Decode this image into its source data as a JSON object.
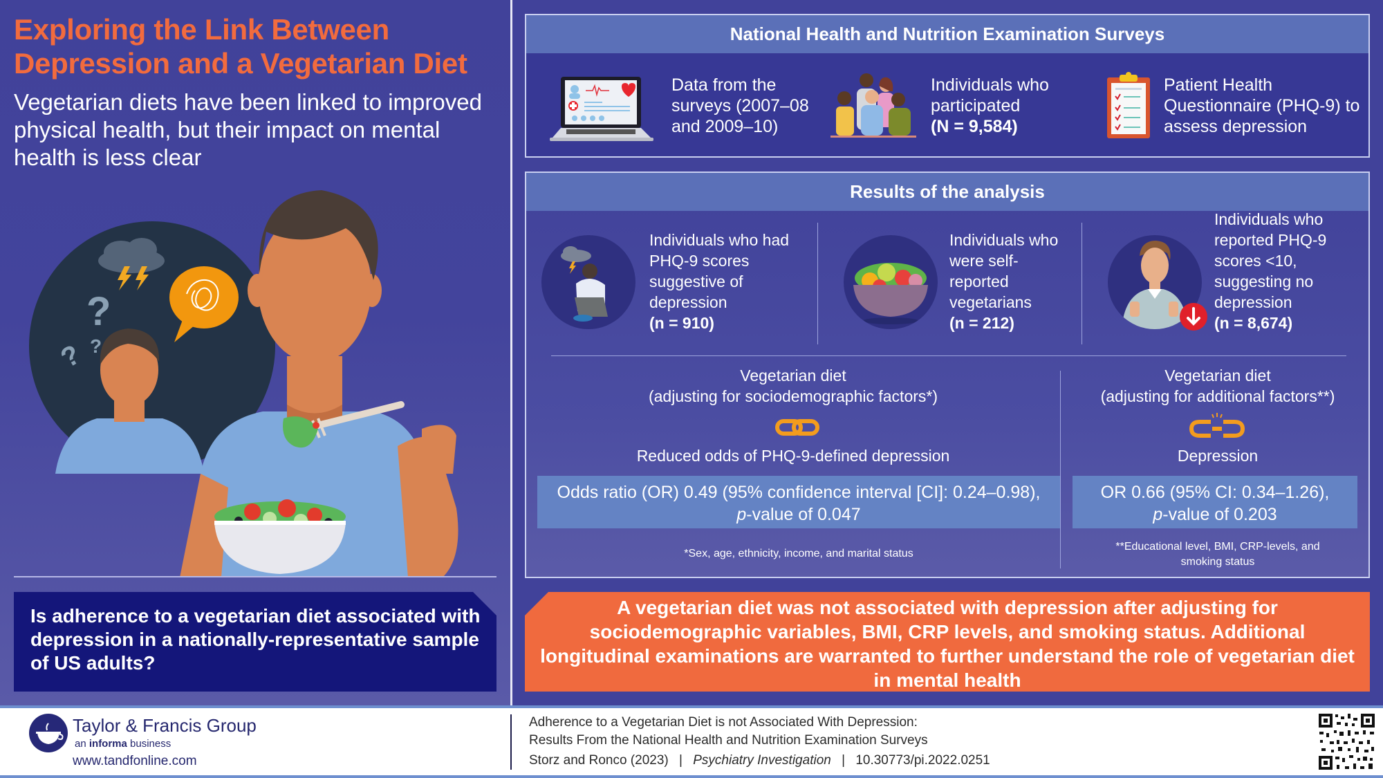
{
  "header": {
    "title": "Exploring the Link Between Depression and a Vegetarian Diet",
    "subtitle": "Vegetarian diets have been linked to improved physical health, but their impact on mental health is less clear"
  },
  "question": "Is adherence to a vegetarian diet associated with depression in a nationally-representative sample of US adults?",
  "surveys": {
    "title": "National Health and Nutrition Examination Surveys",
    "items": [
      {
        "icon": "laptop-health-record-icon",
        "text": "Data from the surveys (2007–08 and 2009–10)"
      },
      {
        "icon": "group-of-people-icon",
        "text": "Individuals who participated",
        "bold": "(N = 9,584)"
      },
      {
        "icon": "clipboard-checklist-icon",
        "text": "Patient Health Questionnaire (PHQ-9) to assess depression"
      }
    ]
  },
  "results": {
    "title": "Results of the analysis",
    "stats": [
      {
        "icon": "depressed-person-icon",
        "text": "Individuals who had PHQ-9 scores suggestive of depression",
        "bold": "(n = 910)"
      },
      {
        "icon": "salad-bowl-icon",
        "text": "Individuals who were self-reported vegetarians",
        "bold": "(n = 212)"
      },
      {
        "icon": "thumbs-up-person-icon",
        "text": "Individuals who reported PHQ-9 scores <10, suggesting no depression",
        "bold": "(n = 8,674)"
      }
    ],
    "analyses": [
      {
        "heading": "Vegetarian diet",
        "adjust": "(adjusting for sociodemographic factors*)",
        "icon": "linked-chain-icon",
        "outcome": "Reduced odds of PHQ-9-defined depression",
        "or_line": "Odds ratio (OR) 0.49 (95% confidence interval [CI]: 0.24–0.98),",
        "p_prefix": "p",
        "p_rest": "-value of 0.047",
        "footnote": "*Sex, age, ethnicity, income, and marital status"
      },
      {
        "heading": "Vegetarian diet",
        "adjust": "(adjusting for additional factors**)",
        "icon": "broken-chain-icon",
        "outcome": "Depression",
        "or_line": "OR 0.66 (95% CI: 0.34–1.26),",
        "p_prefix": "p",
        "p_rest": "-value of 0.203",
        "footnote": "**Educational level, BMI, CRP-levels, and smoking status"
      }
    ]
  },
  "conclusion": "A vegetarian diet was not associated with depression after adjusting for sociodemographic variables, BMI, CRP levels, and smoking status. Additional longitudinal examinations are warranted to further understand the role of vegetarian diet in mental health",
  "footer": {
    "brand": "Taylor & Francis Group",
    "tagline_prefix": "an ",
    "tagline_bold": "informa",
    "tagline_suffix": " business",
    "url": "www.tandfonline.com",
    "citation_line1": "Adherence to a Vegetarian Diet is not Associated With Depression:",
    "citation_line2": "Results From the National Health and Nutrition Examination Surveys",
    "authors": "Storz and Ronco (2023)",
    "separator": "|",
    "journal": "Psychiatry Investigation",
    "doi": "10.30773/pi.2022.0251"
  },
  "colors": {
    "background": "#41429a",
    "title_orange": "#f26b3e",
    "panel_header": "#5b70b8",
    "question_navy": "#14167a",
    "conclusion_orange": "#f06a3e",
    "or_box": "#6483c4",
    "chain_orange": "#f39c1e"
  }
}
